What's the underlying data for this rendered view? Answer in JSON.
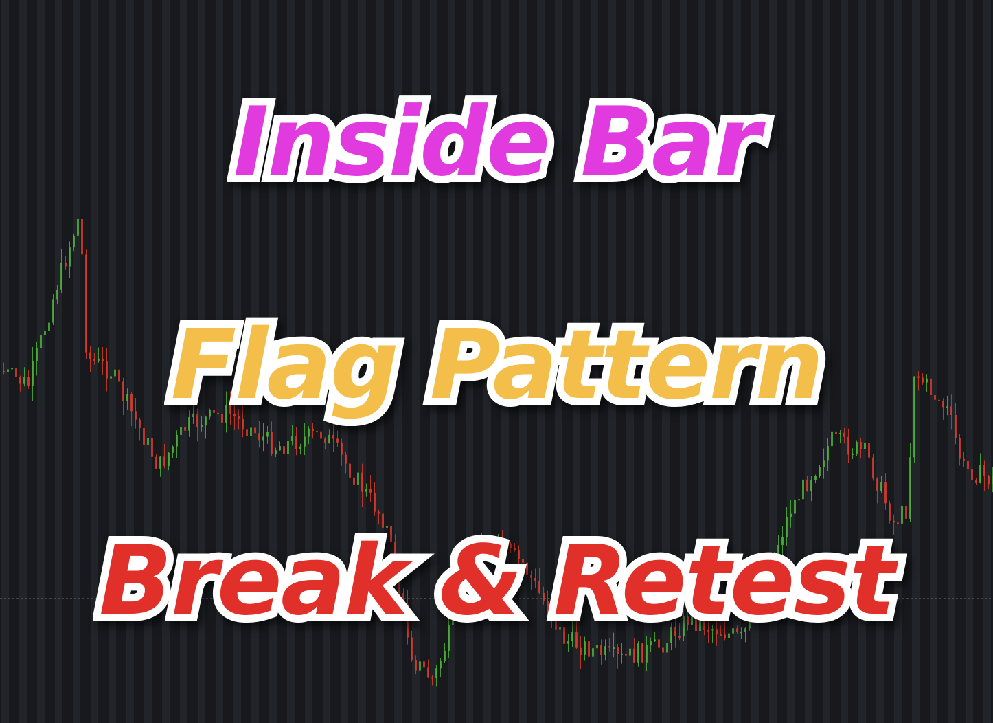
{
  "headlines": {
    "line1": "Inside Bar",
    "line2": "Flag Pattern",
    "line3": "Break & Retest"
  },
  "colors": {
    "background": "#17191d",
    "stripe": "#2a2d33",
    "bullish_candle": "#4caf3a",
    "bearish_candle": "#d8392b",
    "line1_text": "#e13be0",
    "line2_text": "#f3bf4a",
    "line3_text": "#e1302a",
    "text_outline": "#ffffff"
  },
  "background_chart": {
    "type": "candlestick",
    "description_visible": false
  }
}
